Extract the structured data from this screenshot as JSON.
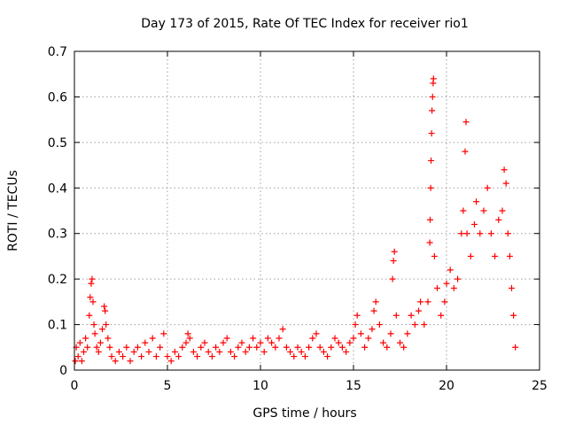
{
  "chart_data": {
    "type": "scatter",
    "title": "Day 173 of 2015, Rate Of TEC Index for receiver rio1",
    "xlabel": "GPS time / hours",
    "ylabel": "ROTI / TECUs",
    "xlim": [
      0,
      25
    ],
    "ylim": [
      0,
      0.7
    ],
    "xticks": [
      0,
      5,
      10,
      15,
      20,
      25
    ],
    "yticks": [
      0,
      0.1,
      0.2,
      0.3,
      0.4,
      0.5,
      0.6,
      0.7
    ],
    "grid": true,
    "legend": "none",
    "marker": "+",
    "marker_color": "#ff0000",
    "points": [
      [
        0.05,
        0.02
      ],
      [
        0.1,
        0.05
      ],
      [
        0.2,
        0.03
      ],
      [
        0.3,
        0.06
      ],
      [
        0.4,
        0.02
      ],
      [
        0.5,
        0.04
      ],
      [
        0.6,
        0.07
      ],
      [
        0.7,
        0.05
      ],
      [
        0.8,
        0.12
      ],
      [
        0.85,
        0.16
      ],
      [
        0.9,
        0.19
      ],
      [
        0.95,
        0.2
      ],
      [
        1.0,
        0.15
      ],
      [
        1.05,
        0.1
      ],
      [
        1.1,
        0.08
      ],
      [
        1.2,
        0.05
      ],
      [
        1.3,
        0.04
      ],
      [
        1.4,
        0.06
      ],
      [
        1.5,
        0.09
      ],
      [
        1.6,
        0.14
      ],
      [
        1.65,
        0.13
      ],
      [
        1.7,
        0.1
      ],
      [
        1.8,
        0.07
      ],
      [
        1.9,
        0.05
      ],
      [
        2.0,
        0.03
      ],
      [
        2.2,
        0.02
      ],
      [
        2.4,
        0.04
      ],
      [
        2.6,
        0.03
      ],
      [
        2.8,
        0.05
      ],
      [
        3.0,
        0.02
      ],
      [
        3.2,
        0.04
      ],
      [
        3.4,
        0.05
      ],
      [
        3.6,
        0.03
      ],
      [
        3.8,
        0.06
      ],
      [
        4.0,
        0.04
      ],
      [
        4.2,
        0.07
      ],
      [
        4.4,
        0.03
      ],
      [
        4.6,
        0.05
      ],
      [
        4.8,
        0.08
      ],
      [
        5.0,
        0.03
      ],
      [
        5.2,
        0.02
      ],
      [
        5.4,
        0.04
      ],
      [
        5.6,
        0.03
      ],
      [
        5.8,
        0.05
      ],
      [
        6.0,
        0.06
      ],
      [
        6.1,
        0.08
      ],
      [
        6.2,
        0.07
      ],
      [
        6.4,
        0.04
      ],
      [
        6.6,
        0.03
      ],
      [
        6.8,
        0.05
      ],
      [
        7.0,
        0.06
      ],
      [
        7.2,
        0.04
      ],
      [
        7.4,
        0.03
      ],
      [
        7.6,
        0.05
      ],
      [
        7.8,
        0.04
      ],
      [
        8.0,
        0.06
      ],
      [
        8.2,
        0.07
      ],
      [
        8.4,
        0.04
      ],
      [
        8.6,
        0.03
      ],
      [
        8.8,
        0.05
      ],
      [
        9.0,
        0.06
      ],
      [
        9.2,
        0.04
      ],
      [
        9.4,
        0.05
      ],
      [
        9.6,
        0.07
      ],
      [
        9.8,
        0.05
      ],
      [
        10.0,
        0.06
      ],
      [
        10.2,
        0.04
      ],
      [
        10.4,
        0.07
      ],
      [
        10.6,
        0.06
      ],
      [
        10.8,
        0.05
      ],
      [
        11.0,
        0.07
      ],
      [
        11.2,
        0.09
      ],
      [
        11.4,
        0.05
      ],
      [
        11.6,
        0.04
      ],
      [
        11.8,
        0.03
      ],
      [
        12.0,
        0.05
      ],
      [
        12.2,
        0.04
      ],
      [
        12.4,
        0.03
      ],
      [
        12.6,
        0.05
      ],
      [
        12.8,
        0.07
      ],
      [
        13.0,
        0.08
      ],
      [
        13.2,
        0.05
      ],
      [
        13.4,
        0.04
      ],
      [
        13.6,
        0.03
      ],
      [
        13.8,
        0.05
      ],
      [
        14.0,
        0.07
      ],
      [
        14.2,
        0.06
      ],
      [
        14.4,
        0.05
      ],
      [
        14.6,
        0.04
      ],
      [
        14.8,
        0.06
      ],
      [
        15.0,
        0.07
      ],
      [
        15.1,
        0.1
      ],
      [
        15.2,
        0.12
      ],
      [
        15.4,
        0.08
      ],
      [
        15.6,
        0.05
      ],
      [
        15.8,
        0.07
      ],
      [
        16.0,
        0.09
      ],
      [
        16.1,
        0.13
      ],
      [
        16.2,
        0.15
      ],
      [
        16.4,
        0.1
      ],
      [
        16.6,
        0.06
      ],
      [
        16.8,
        0.05
      ],
      [
        17.0,
        0.08
      ],
      [
        17.1,
        0.2
      ],
      [
        17.15,
        0.24
      ],
      [
        17.2,
        0.26
      ],
      [
        17.3,
        0.12
      ],
      [
        17.5,
        0.06
      ],
      [
        17.7,
        0.05
      ],
      [
        17.9,
        0.08
      ],
      [
        18.1,
        0.12
      ],
      [
        18.3,
        0.1
      ],
      [
        18.5,
        0.13
      ],
      [
        18.6,
        0.15
      ],
      [
        18.8,
        0.1
      ],
      [
        19.0,
        0.15
      ],
      [
        19.1,
        0.28
      ],
      [
        19.12,
        0.33
      ],
      [
        19.15,
        0.4
      ],
      [
        19.17,
        0.46
      ],
      [
        19.2,
        0.52
      ],
      [
        19.22,
        0.57
      ],
      [
        19.25,
        0.6
      ],
      [
        19.28,
        0.63
      ],
      [
        19.3,
        0.64
      ],
      [
        19.35,
        0.25
      ],
      [
        19.5,
        0.18
      ],
      [
        19.7,
        0.12
      ],
      [
        19.9,
        0.15
      ],
      [
        20.0,
        0.19
      ],
      [
        20.2,
        0.22
      ],
      [
        20.4,
        0.18
      ],
      [
        20.6,
        0.2
      ],
      [
        20.8,
        0.3
      ],
      [
        20.9,
        0.35
      ],
      [
        21.0,
        0.48
      ],
      [
        21.05,
        0.545
      ],
      [
        21.1,
        0.3
      ],
      [
        21.3,
        0.25
      ],
      [
        21.5,
        0.32
      ],
      [
        21.6,
        0.37
      ],
      [
        21.8,
        0.3
      ],
      [
        22.0,
        0.35
      ],
      [
        22.2,
        0.4
      ],
      [
        22.4,
        0.3
      ],
      [
        22.6,
        0.25
      ],
      [
        22.8,
        0.33
      ],
      [
        23.0,
        0.35
      ],
      [
        23.1,
        0.44
      ],
      [
        23.2,
        0.41
      ],
      [
        23.3,
        0.3
      ],
      [
        23.4,
        0.25
      ],
      [
        23.5,
        0.18
      ],
      [
        23.6,
        0.12
      ],
      [
        23.7,
        0.05
      ]
    ]
  }
}
